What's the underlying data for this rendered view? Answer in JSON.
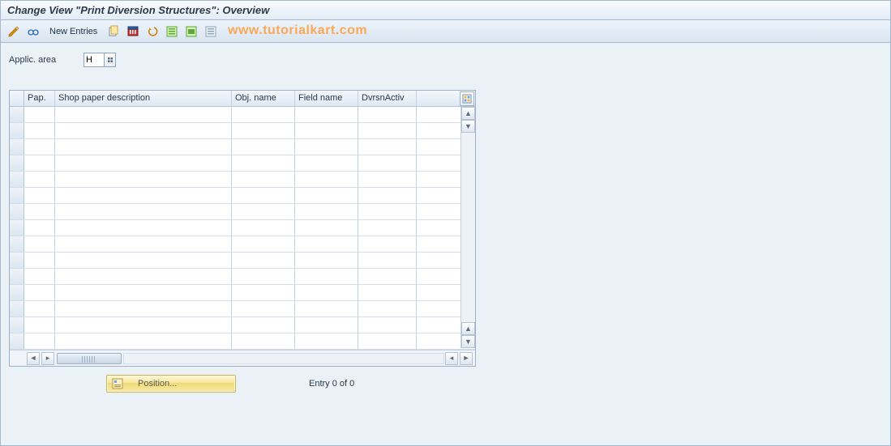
{
  "title": "Change View \"Print Diversion Structures\": Overview",
  "toolbar": {
    "new_entries_label": "New Entries"
  },
  "watermark": "www.tutorialkart.com",
  "field": {
    "label": "Applic. area",
    "value": "H"
  },
  "table": {
    "columns": {
      "pap": "Pap.",
      "desc": "Shop paper description",
      "obj": "Obj. name",
      "fld": "Field name",
      "dvr": "DvrsnActiv"
    },
    "row_count": 15,
    "col_widths": {
      "pap": 38,
      "desc": 218,
      "obj": 78,
      "fld": 78,
      "dvr": 72
    },
    "colors": {
      "header_bg_top": "#f3f7fc",
      "header_bg_bottom": "#dfe9f3",
      "grid_line": "#c5d3e1",
      "row_border": "#d3deea",
      "cell_bg": "#ffffff"
    }
  },
  "footer": {
    "position_label": "Position...",
    "entry_text": "Entry 0 of 0"
  },
  "colors": {
    "window_bg": "#eaf1f7",
    "border": "#a6b9cc",
    "accent_gold_top": "#fff8d9",
    "accent_gold_bottom": "#f0da74",
    "watermark": "#ff9c3a"
  }
}
